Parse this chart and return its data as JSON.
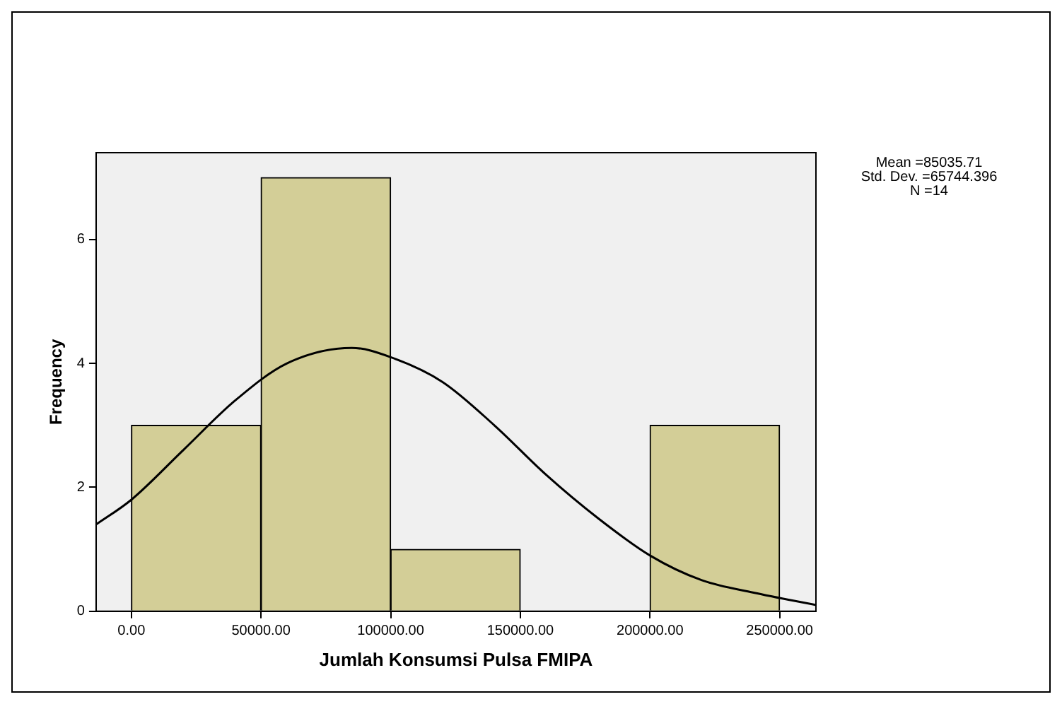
{
  "chart_data": {
    "type": "histogram",
    "xlabel": "Jumlah Konsumsi Pulsa FMIPA",
    "ylabel": "Frequency",
    "bins": [
      0,
      50000,
      100000,
      150000,
      200000,
      250000
    ],
    "values": [
      3,
      7,
      1,
      0,
      3
    ],
    "color": "#d3ce97",
    "series": [
      {
        "type": "line",
        "color": "#000000",
        "x": [
          -13600,
          0,
          20000,
          40000,
          60000,
          85000,
          100000,
          120000,
          140000,
          160000,
          180000,
          200000,
          220000,
          240000,
          264000
        ],
        "values": [
          1.4,
          1.8,
          2.6,
          3.4,
          4.0,
          4.25,
          4.1,
          3.7,
          3.0,
          2.2,
          1.5,
          0.9,
          0.5,
          0.3,
          0.1
        ]
      }
    ],
    "xlim": [
      -13600,
      264000
    ],
    "xticks": [
      {
        "value": 0,
        "label": "0.00"
      },
      {
        "value": 50000,
        "label": "50000.00"
      },
      {
        "value": 100000,
        "label": "100000.00"
      },
      {
        "value": 150000,
        "label": "150000.00"
      },
      {
        "value": 200000,
        "label": "200000.00"
      },
      {
        "value": 250000,
        "label": "250000.00"
      }
    ],
    "ylim": [
      0,
      7.4
    ],
    "yticks": [
      0,
      2,
      4,
      6
    ],
    "grid": false,
    "legend": false,
    "annotations": [
      "Mean =85035.71",
      "Std. Dev. =65744.396",
      "N =14"
    ]
  }
}
